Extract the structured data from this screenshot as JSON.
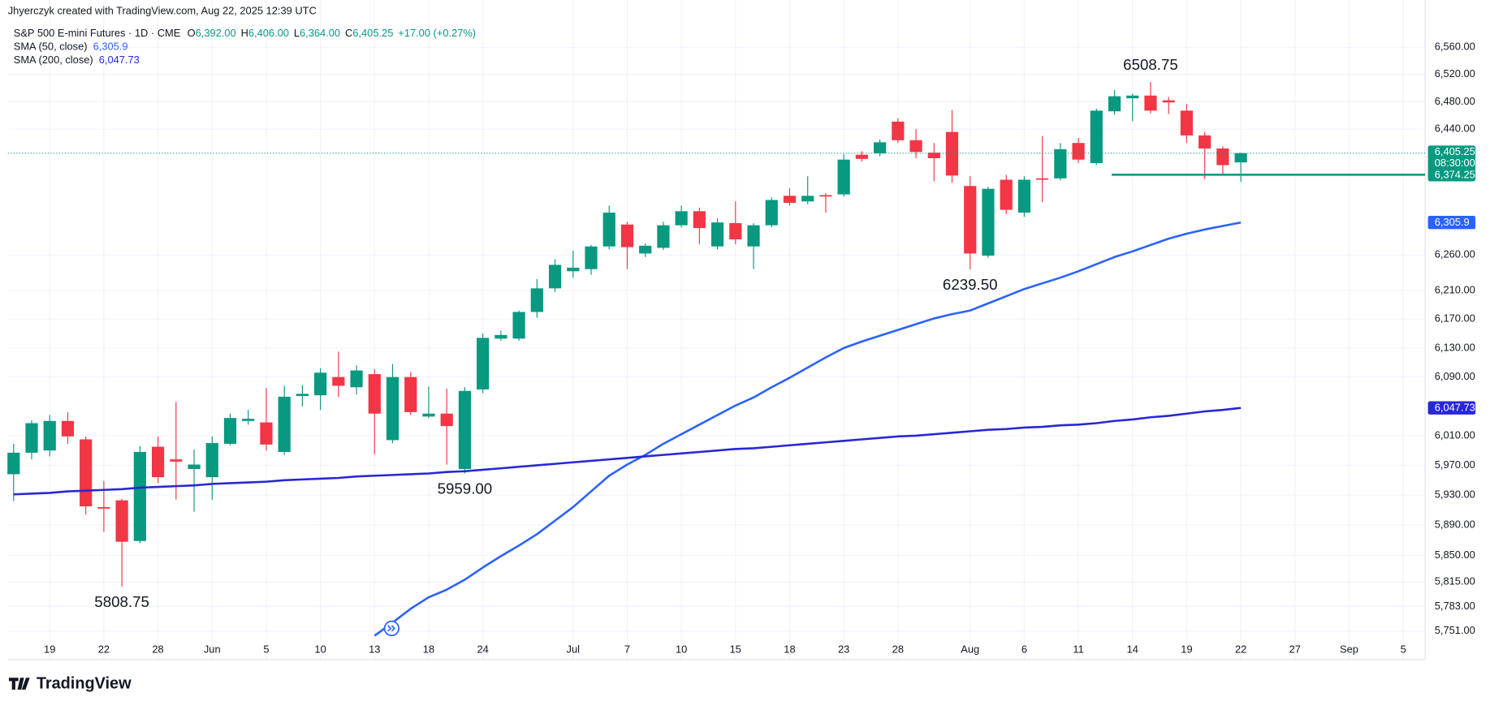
{
  "chart_data": {
    "type": "candlestick",
    "credit": "Jhyerczyk created with TradingView.com, Aug 22, 2025 12:39 UTC",
    "symbol": "S&P 500 E-mini Futures · 1D · CME",
    "ohlc": [
      {
        "key": "O",
        "value": "6,392.00"
      },
      {
        "key": "H",
        "value": "6,406.00"
      },
      {
        "key": "L",
        "value": "6,364.00"
      },
      {
        "key": "C",
        "value": "6,405.25"
      }
    ],
    "change": "+17.00 (+0.27%)",
    "brand": "TradingView",
    "up_color": "#089981",
    "down_color": "#f23645",
    "log_scale": true,
    "grid": true,
    "categories": [
      null,
      null,
      "19",
      null,
      null,
      "22",
      null,
      null,
      "28",
      null,
      null,
      "Jun",
      null,
      null,
      "5",
      null,
      null,
      "10",
      null,
      null,
      "13",
      null,
      null,
      "18",
      null,
      null,
      "24",
      null,
      null,
      null,
      null,
      "Jul",
      null,
      null,
      "7",
      null,
      null,
      "10",
      null,
      null,
      "15",
      null,
      null,
      "18",
      null,
      null,
      "23",
      null,
      null,
      "28",
      null,
      null,
      null,
      "Aug",
      null,
      null,
      "6",
      null,
      null,
      "11",
      null,
      null,
      "14",
      null,
      null,
      "19",
      null,
      null,
      "22",
      null,
      null,
      "27",
      null,
      null,
      "Sep",
      null,
      null,
      "5"
    ],
    "open": [
      5958,
      5987,
      5990,
      6030,
      6005,
      5914,
      5923,
      5869,
      5995,
      5978,
      5965,
      5954,
      5999,
      6030,
      6028,
      5988,
      6064,
      6065,
      6090,
      6076,
      6094,
      6004,
      6090,
      6036,
      6040,
      5965,
      6073,
      6143,
      6143,
      6180,
      6213,
      6237,
      6240,
      6272,
      6303,
      6262,
      6270,
      6302,
      6322,
      6272,
      6305,
      6272,
      6302,
      6344,
      6336,
      6345,
      6346,
      6403,
      6405,
      6451,
      6424,
      6406,
      6436,
      6358,
      6259,
      6367,
      6320,
      6369,
      6369,
      6420,
      6391,
      6466,
      6485,
      6489,
      6482,
      6467,
      6431,
      6412,
      6392,
      null,
      null,
      null,
      null,
      null,
      null,
      null,
      null,
      null
    ],
    "high": [
      5999,
      6031,
      6038,
      6042,
      6009,
      5949,
      5925,
      5996,
      6009,
      6056,
      5991,
      6009,
      6040,
      6045,
      6075,
      6078,
      6079,
      6102,
      6125,
      6106,
      6101,
      6108,
      6097,
      6077,
      6074,
      6076,
      6150,
      6154,
      6182,
      6226,
      6254,
      6266,
      6274,
      6330,
      6307,
      6276,
      6307,
      6330,
      6327,
      6312,
      6336,
      6305,
      6342,
      6355,
      6372,
      6348,
      6404,
      6408,
      6425,
      6456,
      6440,
      6420,
      6468,
      6372,
      6357,
      6374,
      6372,
      6430,
      6420,
      6427,
      6470,
      6497,
      6492,
      6508.75,
      6487,
      6477,
      6436,
      6415,
      6406,
      null,
      null,
      null,
      null,
      null,
      null,
      null,
      null,
      null
    ],
    "low": [
      5922,
      5978,
      5982,
      5999,
      5904,
      5881,
      5808.75,
      5866,
      5946,
      5924,
      5908,
      5924,
      5997,
      6025,
      5990,
      5984,
      6050,
      6045,
      6063,
      6066,
      5985,
      6000,
      6038,
      6034,
      5971,
      5959,
      6068,
      6140,
      6140,
      6172,
      6208,
      6228,
      6232,
      6268,
      6240,
      6257,
      6267,
      6299,
      6275,
      6268,
      6275,
      6240,
      6299,
      6330,
      6332,
      6320,
      6343,
      6393,
      6401,
      6420,
      6398,
      6365,
      6363,
      6239.5,
      6256,
      6318,
      6314,
      6335,
      6366,
      6391,
      6388,
      6461,
      6452,
      6463,
      6462,
      6420,
      6368,
      6374,
      6364,
      null,
      null,
      null,
      null,
      null,
      null,
      null,
      null,
      null
    ],
    "close": [
      5987,
      6027,
      6030,
      6009,
      5915,
      5912,
      5868,
      5988,
      5954,
      5975,
      5971,
      6000,
      6034,
      6033,
      5998,
      6063,
      6067,
      6096,
      6078,
      6099,
      6040,
      6090,
      6042,
      6040,
      6023,
      6071,
      6144,
      6148,
      6180,
      6213,
      6246,
      6242,
      6272,
      6320,
      6271,
      6273,
      6302,
      6322,
      6298,
      6306,
      6282,
      6302,
      6338,
      6334,
      6344,
      6343,
      6396,
      6397,
      6421,
      6424,
      6407,
      6398,
      6373,
      6262,
      6354,
      6324,
      6367,
      6367,
      6411,
      6396,
      6467,
      6488,
      6489,
      6467,
      6479,
      6431,
      6412,
      6388,
      6405.25,
      null,
      null,
      null,
      null,
      null,
      null,
      null,
      null,
      null
    ],
    "series": [
      {
        "name": "SMA (50, close)",
        "color": "#2962ff",
        "last_label": "6,305.9",
        "values": [
          null,
          null,
          null,
          null,
          null,
          null,
          null,
          null,
          null,
          null,
          null,
          null,
          null,
          null,
          null,
          null,
          null,
          null,
          null,
          null,
          5745,
          5762,
          5780,
          5795,
          5805,
          5818,
          5834,
          5849,
          5863,
          5878,
          5896,
          5914,
          5935,
          5956,
          5971,
          5984,
          5999,
          6012,
          6025,
          6038,
          6051,
          6062,
          6076,
          6089,
          6103,
          6117,
          6130,
          6139,
          6147,
          6155,
          6163,
          6171,
          6177,
          6182,
          6192,
          6202,
          6212,
          6220,
          6228,
          6237,
          6247,
          6257,
          6265,
          6274,
          6283,
          6290,
          6296,
          6301,
          6305.9,
          null,
          null,
          null,
          null,
          null,
          null,
          null,
          null,
          null
        ]
      },
      {
        "name": "SMA (200, close)",
        "color": "#2727d6",
        "last_label": "6,047.73",
        "values": [
          5931,
          5932,
          5933,
          5935,
          5936,
          5937,
          5938,
          5940,
          5941,
          5942,
          5943,
          5945,
          5946,
          5947,
          5948,
          5950,
          5951,
          5952,
          5953,
          5955,
          5956,
          5957,
          5958,
          5959,
          5961,
          5962,
          5964,
          5966,
          5968,
          5970,
          5972,
          5974,
          5976,
          5978,
          5980,
          5982,
          5984,
          5986,
          5988,
          5990,
          5992,
          5993,
          5995,
          5997,
          5999,
          6001,
          6003,
          6005,
          6007,
          6009,
          6010,
          6012,
          6014,
          6016,
          6018,
          6019,
          6021,
          6022,
          6024,
          6025,
          6027,
          6030,
          6032,
          6035,
          6037,
          6040,
          6043,
          6045,
          6047.73,
          null,
          null,
          null,
          null,
          null,
          null,
          null,
          null,
          null
        ]
      }
    ],
    "last_price": {
      "value": 6405.25,
      "label": "6,405.25",
      "countdown": "08:30:00"
    },
    "hline": {
      "value": 6374.25,
      "label": "6,374.25",
      "color": "#089981"
    },
    "annotations": [
      {
        "label": "6508.75",
        "value": 6508.75,
        "index": 63,
        "side": "above"
      },
      {
        "label": "6239.50",
        "value": 6239.5,
        "index": 53,
        "side": "below"
      },
      {
        "label": "5959.00",
        "value": 5959,
        "index": 25,
        "side": "below"
      },
      {
        "label": "5808.75",
        "value": 5808.75,
        "index": 6,
        "side": "below"
      }
    ],
    "ylim": [
      5714,
      6619
    ],
    "yticks": [
      {
        "value": 6560,
        "label": "6,560.00"
      },
      {
        "value": 6520,
        "label": "6,520.00"
      },
      {
        "value": 6480,
        "label": "6,480.00"
      },
      {
        "value": 6440,
        "label": "6,440.00"
      },
      {
        "value": 6260,
        "label": "6,260.00"
      },
      {
        "value": 6210,
        "label": "6,210.00"
      },
      {
        "value": 6170,
        "label": "6,170.00"
      },
      {
        "value": 6130,
        "label": "6,130.00"
      },
      {
        "value": 6090,
        "label": "6,090.00"
      },
      {
        "value": 6010,
        "label": "6,010.00"
      },
      {
        "value": 5970,
        "label": "5,970.00"
      },
      {
        "value": 5930,
        "label": "5,930.00"
      },
      {
        "value": 5890,
        "label": "5,890.00"
      },
      {
        "value": 5850,
        "label": "5,850.00"
      },
      {
        "value": 5815,
        "label": "5,815.00"
      },
      {
        "value": 5783,
        "label": "5,783.00"
      },
      {
        "value": 5751,
        "label": "5,751.00"
      }
    ]
  }
}
